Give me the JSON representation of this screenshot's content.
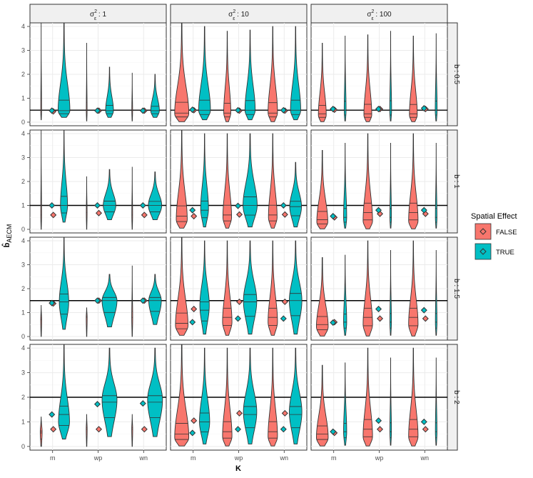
{
  "chart_data": {
    "type": "violin",
    "xlabel": "K",
    "ylabel": "b̂",
    "ylabel_subscript": "AECM",
    "ylim": [
      -0.15,
      4.15
    ],
    "y_ticks": [
      0,
      1,
      2,
      3,
      4
    ],
    "categories": [
      "m",
      "wp",
      "wn"
    ],
    "col_strips": [
      {
        "base": "σ",
        "sup": "2",
        "sub": "ε",
        "value": ": 1"
      },
      {
        "base": "σ",
        "sup": "2",
        "sub": "ε",
        "value": ": 10"
      },
      {
        "base": "σ",
        "sup": "2",
        "sub": "ε",
        "value": ": 100"
      }
    ],
    "row_strips": [
      "b : 0.5",
      "b : 1",
      "b : 1.5",
      "b : 2"
    ],
    "reference_lines": [
      0.5,
      1,
      1.5,
      2
    ],
    "legend": {
      "title": "Spatial Effect",
      "position": "right",
      "entries": [
        {
          "label": "FALSE",
          "color": "#F8766D"
        },
        {
          "label": "TRUE",
          "color": "#00BFC4"
        }
      ]
    },
    "grid": true,
    "panels": [
      {
        "row": 0,
        "col": 0,
        "violins": [
          {
            "cat": "m",
            "group": "FALSE",
            "min": 0.1,
            "max": 4.15,
            "median": 0.48,
            "mode": 0.48,
            "width": 0.05,
            "diamond": 0.45
          },
          {
            "cat": "m",
            "group": "TRUE",
            "min": 0.2,
            "max": 4.15,
            "median": 0.48,
            "mode": 0.48,
            "width": 0.75,
            "diamond": 0.48
          },
          {
            "cat": "wp",
            "group": "FALSE",
            "min": 0.05,
            "max": 3.3,
            "median": 0.48,
            "mode": 0.48,
            "width": 0.05,
            "diamond": 0.48
          },
          {
            "cat": "wp",
            "group": "TRUE",
            "min": 0.2,
            "max": 2.3,
            "median": 0.48,
            "mode": 0.48,
            "width": 0.5,
            "diamond": 0.48
          },
          {
            "cat": "wn",
            "group": "FALSE",
            "min": 0.05,
            "max": 2.05,
            "median": 0.48,
            "mode": 0.48,
            "width": 0.05,
            "diamond": 0.48
          },
          {
            "cat": "wn",
            "group": "TRUE",
            "min": 0.2,
            "max": 2.0,
            "median": 0.48,
            "mode": 0.48,
            "width": 0.55,
            "diamond": 0.48
          }
        ]
      },
      {
        "row": 0,
        "col": 1,
        "violins": [
          {
            "cat": "m",
            "group": "FALSE",
            "min": 0.02,
            "max": 4.15,
            "median": 0.38,
            "mode": 0.35,
            "width": 0.9,
            "diamond": 0.5
          },
          {
            "cat": "m",
            "group": "TRUE",
            "min": 0.1,
            "max": 4.0,
            "median": 0.5,
            "mode": 0.5,
            "width": 0.75,
            "diamond": 0.52
          },
          {
            "cat": "wp",
            "group": "FALSE",
            "min": 0.02,
            "max": 3.8,
            "median": 0.38,
            "mode": 0.4,
            "width": 0.45,
            "diamond": 0.48
          },
          {
            "cat": "wp",
            "group": "TRUE",
            "min": 0.1,
            "max": 3.85,
            "median": 0.5,
            "mode": 0.5,
            "width": 0.65,
            "diamond": 0.5
          },
          {
            "cat": "wn",
            "group": "FALSE",
            "min": 0.02,
            "max": 4.0,
            "median": 0.38,
            "mode": 0.4,
            "width": 0.6,
            "diamond": 0.48
          },
          {
            "cat": "wn",
            "group": "TRUE",
            "min": 0.1,
            "max": 4.0,
            "median": 0.5,
            "mode": 0.5,
            "width": 0.65,
            "diamond": 0.5
          }
        ]
      },
      {
        "row": 0,
        "col": 2,
        "violins": [
          {
            "cat": "m",
            "group": "FALSE",
            "min": 0.02,
            "max": 3.3,
            "median": 0.35,
            "mode": 0.3,
            "width": 0.5,
            "diamond": 0.52
          },
          {
            "cat": "m",
            "group": "TRUE",
            "min": 0.05,
            "max": 3.6,
            "median": 0.5,
            "mode": 0.5,
            "width": 0.12,
            "diamond": 0.55
          },
          {
            "cat": "wp",
            "group": "FALSE",
            "min": 0.02,
            "max": 3.65,
            "median": 0.35,
            "mode": 0.3,
            "width": 0.5,
            "diamond": 0.55
          },
          {
            "cat": "wp",
            "group": "TRUE",
            "min": 0.05,
            "max": 3.8,
            "median": 0.5,
            "mode": 0.5,
            "width": 0.12,
            "diamond": 0.55
          },
          {
            "cat": "wn",
            "group": "FALSE",
            "min": 0.02,
            "max": 3.6,
            "median": 0.35,
            "mode": 0.3,
            "width": 0.5,
            "diamond": 0.55
          },
          {
            "cat": "wn",
            "group": "TRUE",
            "min": 0.05,
            "max": 3.7,
            "median": 0.5,
            "mode": 0.5,
            "width": 0.12,
            "diamond": 0.58
          }
        ]
      },
      {
        "row": 1,
        "col": 0,
        "violins": [
          {
            "cat": "m",
            "group": "FALSE",
            "min": 0.0,
            "max": 4.15,
            "median": 0.6,
            "mode": 0.6,
            "width": 0.05,
            "diamond": 0.6
          },
          {
            "cat": "m",
            "group": "TRUE",
            "min": 0.3,
            "max": 4.15,
            "median": 1.0,
            "mode": 1.0,
            "width": 0.45,
            "diamond": 1.0
          },
          {
            "cat": "wp",
            "group": "FALSE",
            "min": 0.0,
            "max": 2.2,
            "median": 0.7,
            "mode": 0.7,
            "width": 0.05,
            "diamond": 0.68
          },
          {
            "cat": "wp",
            "group": "TRUE",
            "min": 0.4,
            "max": 2.5,
            "median": 1.0,
            "mode": 1.0,
            "width": 0.8,
            "diamond": 1.0
          },
          {
            "cat": "wn",
            "group": "FALSE",
            "min": 0.0,
            "max": 2.6,
            "median": 0.6,
            "mode": 0.6,
            "width": 0.05,
            "diamond": 0.6
          },
          {
            "cat": "wn",
            "group": "TRUE",
            "min": 0.4,
            "max": 2.4,
            "median": 1.0,
            "mode": 1.0,
            "width": 0.85,
            "diamond": 1.0
          }
        ]
      },
      {
        "row": 1,
        "col": 1,
        "violins": [
          {
            "cat": "m",
            "group": "FALSE",
            "min": 0.05,
            "max": 4.15,
            "median": 0.55,
            "mode": 0.4,
            "width": 0.7,
            "diamond": 0.55
          },
          {
            "cat": "m",
            "group": "TRUE",
            "min": 0.1,
            "max": 4.0,
            "median": 0.8,
            "mode": 0.85,
            "width": 0.5,
            "diamond": 0.8
          },
          {
            "cat": "wp",
            "group": "FALSE",
            "min": 0.05,
            "max": 4.0,
            "median": 0.6,
            "mode": 0.5,
            "width": 0.55,
            "diamond": 0.62
          },
          {
            "cat": "wp",
            "group": "TRUE",
            "min": 0.1,
            "max": 4.0,
            "median": 1.0,
            "mode": 1.0,
            "width": 0.9,
            "diamond": 0.98
          },
          {
            "cat": "wn",
            "group": "FALSE",
            "min": 0.05,
            "max": 4.0,
            "median": 0.6,
            "mode": 0.5,
            "width": 0.55,
            "diamond": 0.62
          },
          {
            "cat": "wn",
            "group": "TRUE",
            "min": 0.1,
            "max": 2.8,
            "median": 0.95,
            "mode": 0.95,
            "width": 0.75,
            "diamond": 1.0
          }
        ]
      },
      {
        "row": 1,
        "col": 2,
        "violins": [
          {
            "cat": "m",
            "group": "FALSE",
            "min": 0.02,
            "max": 3.3,
            "median": 0.4,
            "mode": 0.3,
            "width": 0.7,
            "diamond": 0.5
          },
          {
            "cat": "m",
            "group": "TRUE",
            "min": 0.05,
            "max": 3.6,
            "median": 0.5,
            "mode": 0.5,
            "width": 0.2,
            "diamond": 0.55
          },
          {
            "cat": "wp",
            "group": "FALSE",
            "min": 0.02,
            "max": 4.0,
            "median": 0.7,
            "mode": 0.35,
            "width": 0.6,
            "diamond": 0.65
          },
          {
            "cat": "wp",
            "group": "TRUE",
            "min": 0.05,
            "max": 3.6,
            "median": 0.5,
            "mode": 0.5,
            "width": 0.1,
            "diamond": 0.8
          },
          {
            "cat": "wn",
            "group": "FALSE",
            "min": 0.02,
            "max": 4.0,
            "median": 0.7,
            "mode": 0.35,
            "width": 0.6,
            "diamond": 0.65
          },
          {
            "cat": "wn",
            "group": "TRUE",
            "min": 0.05,
            "max": 3.6,
            "median": 0.5,
            "mode": 0.5,
            "width": 0.1,
            "diamond": 0.8
          }
        ]
      },
      {
        "row": 2,
        "col": 0,
        "violins": [
          {
            "cat": "m",
            "group": "FALSE",
            "min": 0.0,
            "max": 1.3,
            "median": 0.7,
            "mode": 0.7,
            "width": 0.06,
            "diamond": 1.38
          },
          {
            "cat": "m",
            "group": "TRUE",
            "min": 0.3,
            "max": 4.15,
            "median": 1.45,
            "mode": 1.45,
            "width": 0.6,
            "diamond": 1.4
          },
          {
            "cat": "wp",
            "group": "FALSE",
            "min": 0.0,
            "max": 1.2,
            "median": 0.8,
            "mode": 0.8,
            "width": 0.06,
            "diamond": 1.5
          },
          {
            "cat": "wp",
            "group": "TRUE",
            "min": 0.4,
            "max": 2.6,
            "median": 1.5,
            "mode": 1.5,
            "width": 0.95,
            "diamond": 1.5
          },
          {
            "cat": "wn",
            "group": "FALSE",
            "min": 0.0,
            "max": 2.95,
            "median": 0.8,
            "mode": 0.8,
            "width": 0.06,
            "diamond": 1.5
          },
          {
            "cat": "wn",
            "group": "TRUE",
            "min": 0.5,
            "max": 2.6,
            "median": 1.5,
            "mode": 1.5,
            "width": 0.8,
            "diamond": 1.5
          }
        ]
      },
      {
        "row": 2,
        "col": 1,
        "violins": [
          {
            "cat": "m",
            "group": "FALSE",
            "min": 0.05,
            "max": 4.15,
            "median": 0.55,
            "mode": 0.45,
            "width": 0.8,
            "diamond": 1.15
          },
          {
            "cat": "m",
            "group": "TRUE",
            "min": 0.1,
            "max": 4.0,
            "median": 1.1,
            "mode": 1.3,
            "width": 0.6,
            "diamond": 0.6
          },
          {
            "cat": "wp",
            "group": "FALSE",
            "min": 0.05,
            "max": 4.0,
            "median": 0.8,
            "mode": 0.6,
            "width": 0.6,
            "diamond": 1.45
          },
          {
            "cat": "wp",
            "group": "TRUE",
            "min": 0.1,
            "max": 4.0,
            "median": 1.45,
            "mode": 1.5,
            "width": 0.85,
            "diamond": 0.75
          },
          {
            "cat": "wn",
            "group": "FALSE",
            "min": 0.05,
            "max": 4.0,
            "median": 0.8,
            "mode": 0.6,
            "width": 0.6,
            "diamond": 1.45
          },
          {
            "cat": "wn",
            "group": "TRUE",
            "min": 0.1,
            "max": 4.0,
            "median": 1.5,
            "mode": 1.5,
            "width": 0.8,
            "diamond": 0.75
          }
        ]
      },
      {
        "row": 2,
        "col": 2,
        "violins": [
          {
            "cat": "m",
            "group": "FALSE",
            "min": 0.02,
            "max": 3.3,
            "median": 0.5,
            "mode": 0.4,
            "width": 0.75,
            "diamond": 0.6
          },
          {
            "cat": "m",
            "group": "TRUE",
            "min": 0.05,
            "max": 3.4,
            "median": 0.6,
            "mode": 0.6,
            "width": 0.2,
            "diamond": 0.58
          },
          {
            "cat": "wp",
            "group": "FALSE",
            "min": 0.02,
            "max": 4.0,
            "median": 0.8,
            "mode": 0.5,
            "width": 0.6,
            "diamond": 0.75
          },
          {
            "cat": "wp",
            "group": "TRUE",
            "min": 0.05,
            "max": 3.6,
            "median": 0.6,
            "mode": 0.6,
            "width": 0.1,
            "diamond": 1.15
          },
          {
            "cat": "wn",
            "group": "FALSE",
            "min": 0.02,
            "max": 4.0,
            "median": 0.8,
            "mode": 0.5,
            "width": 0.6,
            "diamond": 0.75
          },
          {
            "cat": "wn",
            "group": "TRUE",
            "min": 0.05,
            "max": 3.6,
            "median": 0.6,
            "mode": 0.6,
            "width": 0.1,
            "diamond": 1.1
          }
        ]
      },
      {
        "row": 3,
        "col": 0,
        "violins": [
          {
            "cat": "m",
            "group": "FALSE",
            "min": 0.0,
            "max": 1.2,
            "median": 0.55,
            "mode": 0.6,
            "width": 0.12,
            "diamond": 0.7
          },
          {
            "cat": "m",
            "group": "TRUE",
            "min": 0.3,
            "max": 4.15,
            "median": 1.3,
            "mode": 1.0,
            "width": 0.7,
            "diamond": 1.3
          },
          {
            "cat": "wp",
            "group": "FALSE",
            "min": 0.0,
            "max": 1.3,
            "median": 0.7,
            "mode": 0.7,
            "width": 0.06,
            "diamond": 0.7
          },
          {
            "cat": "wp",
            "group": "TRUE",
            "min": 0.4,
            "max": 4.0,
            "median": 1.8,
            "mode": 1.9,
            "width": 0.95,
            "diamond": 1.72
          },
          {
            "cat": "wn",
            "group": "FALSE",
            "min": 0.0,
            "max": 1.3,
            "median": 0.7,
            "mode": 0.7,
            "width": 0.06,
            "diamond": 0.7
          },
          {
            "cat": "wn",
            "group": "TRUE",
            "min": 0.4,
            "max": 4.0,
            "median": 1.8,
            "mode": 1.9,
            "width": 0.95,
            "diamond": 1.75
          }
        ]
      },
      {
        "row": 3,
        "col": 1,
        "violins": [
          {
            "cat": "m",
            "group": "FALSE",
            "min": 0.02,
            "max": 4.15,
            "median": 0.5,
            "mode": 0.35,
            "width": 0.9,
            "diamond": 1.05
          },
          {
            "cat": "m",
            "group": "TRUE",
            "min": 0.1,
            "max": 4.0,
            "median": 1.0,
            "mode": 1.0,
            "width": 0.65,
            "diamond": 0.55
          },
          {
            "cat": "wp",
            "group": "FALSE",
            "min": 0.02,
            "max": 4.0,
            "median": 0.6,
            "mode": 0.4,
            "width": 0.6,
            "diamond": 1.35
          },
          {
            "cat": "wp",
            "group": "TRUE",
            "min": 0.1,
            "max": 4.0,
            "median": 1.3,
            "mode": 1.4,
            "width": 0.85,
            "diamond": 0.7
          },
          {
            "cat": "wn",
            "group": "FALSE",
            "min": 0.02,
            "max": 4.0,
            "median": 0.6,
            "mode": 0.4,
            "width": 0.6,
            "diamond": 1.35
          },
          {
            "cat": "wn",
            "group": "TRUE",
            "min": 0.1,
            "max": 4.0,
            "median": 1.3,
            "mode": 1.4,
            "width": 0.8,
            "diamond": 0.7
          }
        ]
      },
      {
        "row": 3,
        "col": 2,
        "violins": [
          {
            "cat": "m",
            "group": "FALSE",
            "min": 0.02,
            "max": 3.3,
            "median": 0.5,
            "mode": 0.35,
            "width": 0.75,
            "diamond": 0.55
          },
          {
            "cat": "m",
            "group": "TRUE",
            "min": 0.05,
            "max": 3.4,
            "median": 0.6,
            "mode": 0.6,
            "width": 0.2,
            "diamond": 0.6
          },
          {
            "cat": "wp",
            "group": "FALSE",
            "min": 0.02,
            "max": 4.0,
            "median": 0.7,
            "mode": 0.4,
            "width": 0.6,
            "diamond": 0.7
          },
          {
            "cat": "wp",
            "group": "TRUE",
            "min": 0.05,
            "max": 3.6,
            "median": 0.6,
            "mode": 0.6,
            "width": 0.1,
            "diamond": 1.05
          },
          {
            "cat": "wn",
            "group": "FALSE",
            "min": 0.02,
            "max": 4.0,
            "median": 0.7,
            "mode": 0.4,
            "width": 0.6,
            "diamond": 0.7
          },
          {
            "cat": "wn",
            "group": "TRUE",
            "min": 0.05,
            "max": 3.6,
            "median": 0.6,
            "mode": 0.6,
            "width": 0.1,
            "diamond": 1.0
          }
        ]
      }
    ]
  }
}
